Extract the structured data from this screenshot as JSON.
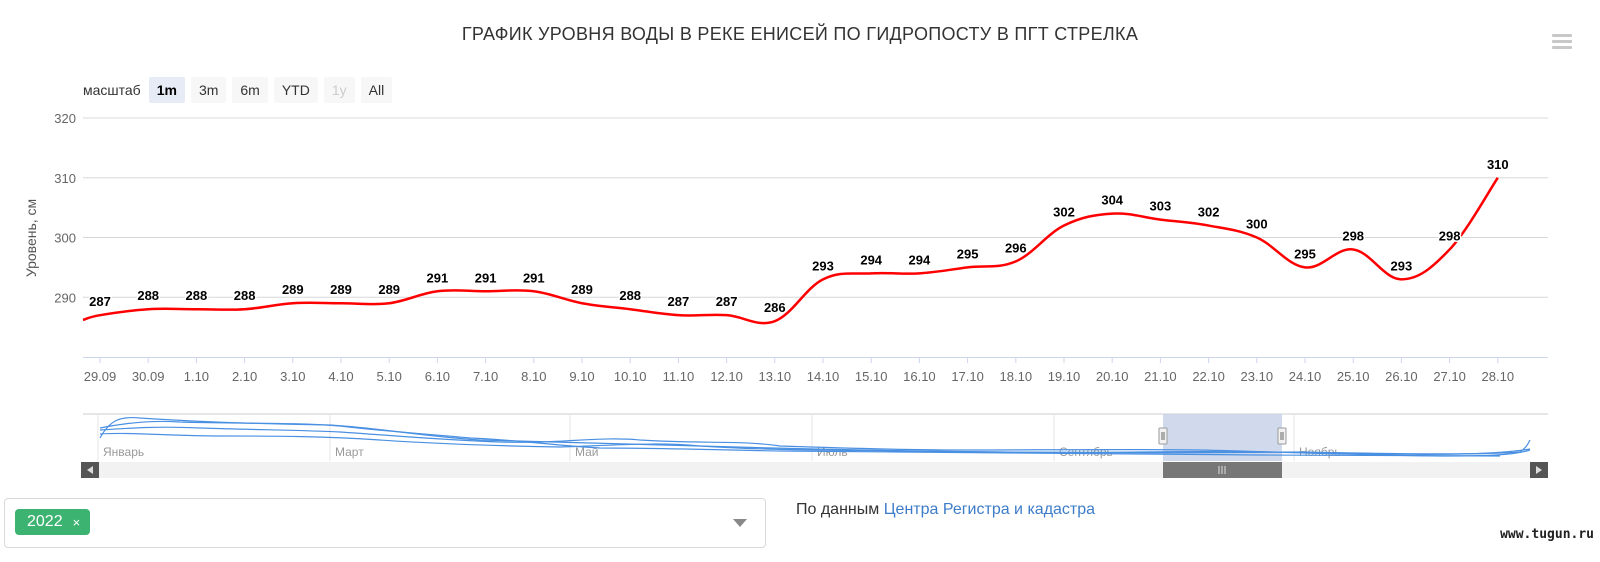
{
  "menu_icon": "hamburger-menu-icon",
  "zoom": {
    "label": "масштаб",
    "buttons": [
      {
        "label": "1m",
        "state": "active"
      },
      {
        "label": "3m",
        "state": "normal"
      },
      {
        "label": "6m",
        "state": "normal"
      },
      {
        "label": "YTD",
        "state": "normal"
      },
      {
        "label": "1y",
        "state": "disabled"
      },
      {
        "label": "All",
        "state": "normal"
      }
    ]
  },
  "colors": {
    "series": "#ff0000",
    "navigator_series": "#4a90e2",
    "navigator_mask": "#c9d3ea",
    "tag": "#3cb371",
    "link": "#3d7cc9"
  },
  "chart_data": {
    "type": "line",
    "title": "ГРАФИК УРОВНЯ ВОДЫ В РЕКЕ ЕНИСЕЙ ПО ГИДРОПОСТУ В ПГТ СТРЕЛКА",
    "xlabel": "",
    "ylabel": "Уровень, см",
    "ylim": [
      280,
      320
    ],
    "yticks": [
      290,
      300,
      310,
      320
    ],
    "grid": true,
    "categories": [
      "29.09",
      "30.09",
      "1.10",
      "2.10",
      "3.10",
      "4.10",
      "5.10",
      "6.10",
      "7.10",
      "8.10",
      "9.10",
      "10.10",
      "11.10",
      "12.10",
      "13.10",
      "14.10",
      "15.10",
      "16.10",
      "17.10",
      "18.10",
      "19.10",
      "20.10",
      "21.10",
      "22.10",
      "23.10",
      "24.10",
      "25.10",
      "26.10",
      "27.10",
      "28.10"
    ],
    "series": [
      {
        "name": "",
        "values": [
          287,
          288,
          288,
          288,
          289,
          289,
          289,
          291,
          291,
          291,
          289,
          288,
          287,
          287,
          286,
          293,
          294,
          294,
          295,
          296,
          302,
          304,
          303,
          302,
          300,
          295,
          298,
          293,
          298,
          310
        ]
      }
    ]
  },
  "navigator": {
    "month_labels": [
      "Январь",
      "Март",
      "Май",
      "Июль",
      "Сентябрь",
      "Ноябрь"
    ],
    "selected_range": [
      "29.09",
      "28.10"
    ]
  },
  "year_filter": {
    "selected": "2022",
    "remove_symbol": "×"
  },
  "source": {
    "prefix": "По данным",
    "link_text": "Центра Регистра и кадастра"
  },
  "watermark": "www.tugun.ru"
}
